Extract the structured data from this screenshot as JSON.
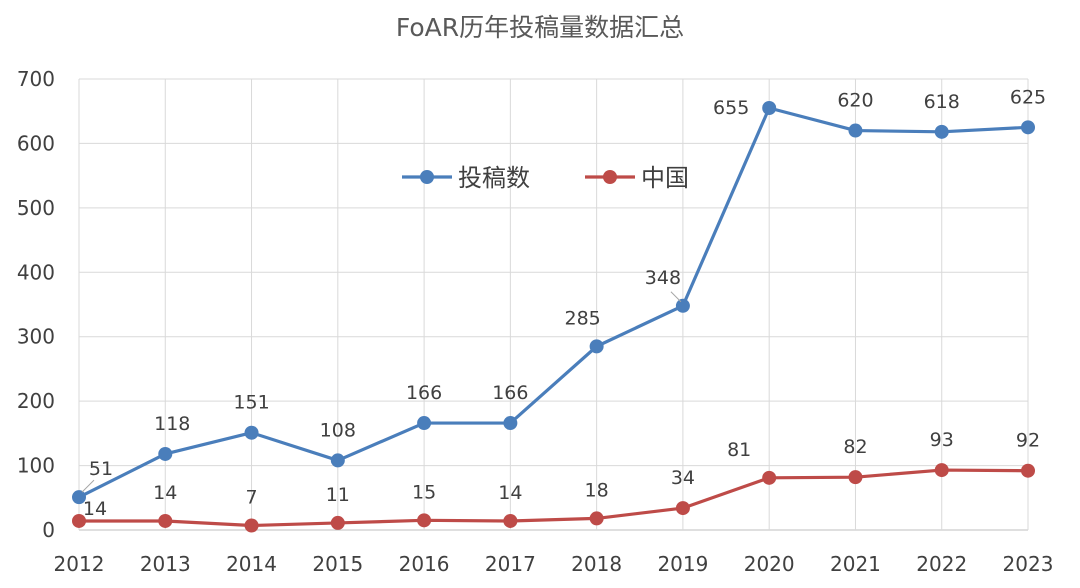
{
  "chart_data": {
    "type": "line",
    "title": "FoAR历年投稿量数据汇总",
    "xlabel": "",
    "ylabel": "",
    "categories": [
      "2012",
      "2013",
      "2014",
      "2015",
      "2016",
      "2017",
      "2018",
      "2019",
      "2020",
      "2021",
      "2022",
      "2023"
    ],
    "ylim": [
      0,
      700
    ],
    "yticks": [
      "0",
      "100",
      "200",
      "300",
      "400",
      "500",
      "600",
      "700"
    ],
    "grid": true,
    "legend_position": "top-center-inside",
    "series": [
      {
        "name": "投稿数",
        "color": "#4a7ebb",
        "values": [
          51,
          118,
          151,
          108,
          166,
          166,
          285,
          348,
          655,
          620,
          618,
          625
        ]
      },
      {
        "name": "中国",
        "color": "#be4b48",
        "values": [
          14,
          14,
          7,
          11,
          15,
          14,
          18,
          34,
          81,
          82,
          93,
          92
        ]
      }
    ]
  }
}
